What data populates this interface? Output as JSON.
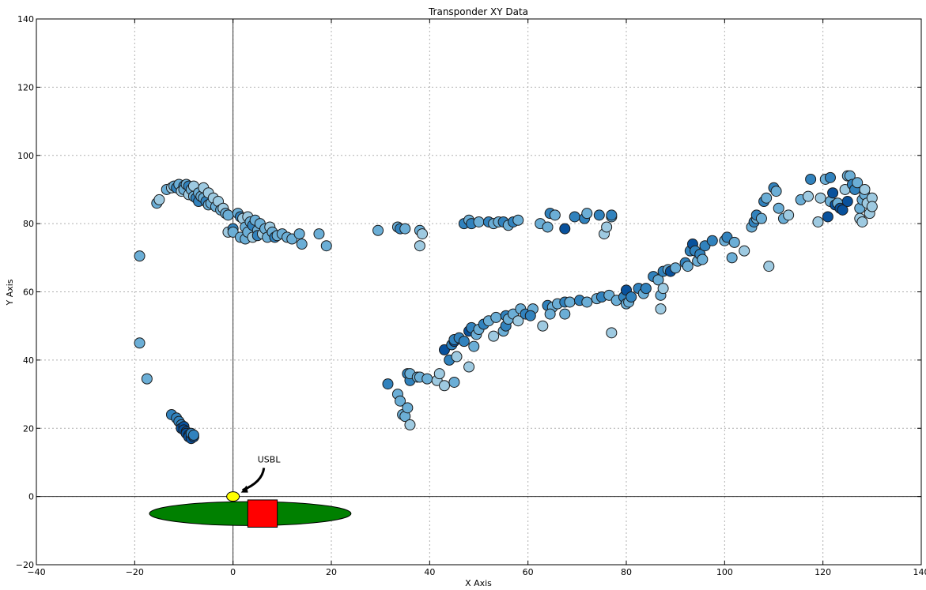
{
  "chart_data": {
    "type": "scatter",
    "title": "Transponder XY Data",
    "xlabel": "X Axis",
    "ylabel": "Y Axis",
    "xlim": [
      -40,
      140
    ],
    "ylim": [
      -20,
      140
    ],
    "xticks": [
      "−40",
      "−20",
      "0",
      "20",
      "40",
      "60",
      "80",
      "100",
      "120",
      "140"
    ],
    "yticks": [
      "−20",
      "0",
      "20",
      "40",
      "60",
      "80",
      "100",
      "120",
      "140"
    ],
    "grid": true,
    "colors": [
      "#c6dbef",
      "#9ecae1",
      "#6baed6",
      "#3182bd",
      "#08519c"
    ],
    "annotation": {
      "text": "USBL",
      "target": [
        0,
        0
      ],
      "text_pos": [
        5,
        10
      ]
    },
    "vessel": {
      "hull_center": [
        3.5,
        -5
      ],
      "hull_halfwidth": 20.5,
      "hull_halfheight": 3.5,
      "hull_color": "#008000",
      "deck_x": [
        3,
        9
      ],
      "deck_y": [
        -9,
        -1
      ],
      "deck_color": "#ff0000",
      "usbl_center": [
        0,
        0
      ],
      "usbl_color": "#ffff00"
    },
    "points": [
      [
        -19,
        70.5,
        2
      ],
      [
        -19,
        45,
        2
      ],
      [
        -17.5,
        34.5,
        2
      ],
      [
        -15.5,
        86,
        2
      ],
      [
        -15,
        87,
        1
      ],
      [
        -13.5,
        90,
        2
      ],
      [
        -12.5,
        90.5,
        1
      ],
      [
        -12,
        91,
        2
      ],
      [
        -11.5,
        90.5,
        3
      ],
      [
        -11,
        91.5,
        2
      ],
      [
        -10.5,
        89.5,
        1
      ],
      [
        -10,
        91,
        3
      ],
      [
        -10,
        90,
        2
      ],
      [
        -9.5,
        91.5,
        2
      ],
      [
        -9,
        88.5,
        1
      ],
      [
        -9,
        91,
        3
      ],
      [
        -8.5,
        90,
        2
      ],
      [
        -8,
        91,
        1
      ],
      [
        -8,
        88,
        2
      ],
      [
        -7.5,
        87.5,
        3
      ],
      [
        -7,
        89,
        2
      ],
      [
        -7,
        86.5,
        3
      ],
      [
        -6.5,
        88,
        2
      ],
      [
        -6,
        90.5,
        1
      ],
      [
        -6,
        87.5,
        2
      ],
      [
        -5.5,
        86.5,
        3
      ],
      [
        -5,
        89,
        1
      ],
      [
        -5,
        85.5,
        2
      ],
      [
        -4.5,
        86,
        2
      ],
      [
        -4,
        87.5,
        1
      ],
      [
        -3.5,
        85,
        2
      ],
      [
        -3,
        86.5,
        1
      ],
      [
        -2.5,
        84,
        2
      ],
      [
        -2,
        84.5,
        1
      ],
      [
        -1.5,
        83,
        2
      ],
      [
        -1,
        82.5,
        2
      ],
      [
        -1,
        77.5,
        1
      ],
      [
        0,
        78.5,
        3
      ],
      [
        0,
        77.5,
        2
      ],
      [
        1,
        83,
        2
      ],
      [
        1.5,
        82,
        3
      ],
      [
        1.5,
        76,
        2
      ],
      [
        2,
        81.5,
        1
      ],
      [
        2.5,
        79,
        2
      ],
      [
        2.5,
        75.5,
        2
      ],
      [
        3,
        82,
        1
      ],
      [
        3,
        77.5,
        2
      ],
      [
        3.5,
        80.5,
        2
      ],
      [
        4,
        79.5,
        3
      ],
      [
        4,
        76,
        1
      ],
      [
        4.5,
        81,
        2
      ],
      [
        5,
        78,
        2
      ],
      [
        5,
        76.5,
        3
      ],
      [
        5.5,
        80,
        2
      ],
      [
        6,
        77,
        1
      ],
      [
        6.5,
        78.5,
        2
      ],
      [
        7,
        76,
        2
      ],
      [
        7.5,
        79,
        1
      ],
      [
        8,
        77.5,
        2
      ],
      [
        8.5,
        76,
        3
      ],
      [
        9,
        76.5,
        2
      ],
      [
        10,
        77,
        2
      ],
      [
        11,
        76,
        2
      ],
      [
        12,
        75.5,
        2
      ],
      [
        13.5,
        77,
        2
      ],
      [
        14,
        74,
        2
      ],
      [
        17.5,
        77,
        2
      ],
      [
        19,
        73.5,
        2
      ],
      [
        -12.5,
        24,
        3
      ],
      [
        -11.5,
        23,
        3
      ],
      [
        -11,
        22,
        3
      ],
      [
        -10.5,
        21,
        3
      ],
      [
        -10.5,
        20,
        4
      ],
      [
        -10,
        20.5,
        4
      ],
      [
        -10,
        19.5,
        4
      ],
      [
        -9.5,
        19,
        4
      ],
      [
        -9.5,
        18.5,
        4
      ],
      [
        -9,
        18,
        4
      ],
      [
        -9,
        17.5,
        4
      ],
      [
        -8.5,
        17,
        4
      ],
      [
        -8.5,
        18.5,
        3
      ],
      [
        -8,
        17.5,
        4
      ],
      [
        -8,
        18,
        3
      ],
      [
        29.5,
        78,
        2
      ],
      [
        33.5,
        79,
        2
      ],
      [
        34,
        78.5,
        3
      ],
      [
        35,
        78.5,
        2
      ],
      [
        38,
        78,
        2
      ],
      [
        38.5,
        77,
        1
      ],
      [
        38,
        73.5,
        1
      ],
      [
        47,
        80,
        3
      ],
      [
        48,
        81,
        2
      ],
      [
        48.5,
        80,
        3
      ],
      [
        50,
        80.5,
        2
      ],
      [
        52,
        80.5,
        3
      ],
      [
        53,
        80,
        2
      ],
      [
        54,
        80.5,
        2
      ],
      [
        55,
        80.5,
        3
      ],
      [
        56,
        79.5,
        2
      ],
      [
        57,
        80.5,
        3
      ],
      [
        58,
        81,
        2
      ],
      [
        62.5,
        80,
        2
      ],
      [
        64,
        79,
        2
      ],
      [
        64.5,
        83,
        3
      ],
      [
        65.5,
        82.5,
        2
      ],
      [
        67.5,
        78.5,
        4
      ],
      [
        69.5,
        82,
        3
      ],
      [
        71.5,
        81.5,
        3
      ],
      [
        72,
        83,
        2
      ],
      [
        74.5,
        82.5,
        3
      ],
      [
        75.5,
        77,
        1
      ],
      [
        76,
        79,
        1
      ],
      [
        77,
        82,
        2
      ],
      [
        77,
        82.5,
        3
      ],
      [
        31.5,
        33,
        3
      ],
      [
        33.5,
        30,
        2
      ],
      [
        34,
        28,
        2
      ],
      [
        34.5,
        24,
        2
      ],
      [
        35,
        23.5,
        2
      ],
      [
        35.5,
        26,
        2
      ],
      [
        36,
        21,
        1
      ],
      [
        35.5,
        36,
        3
      ],
      [
        36,
        34,
        3
      ],
      [
        36,
        36,
        2
      ],
      [
        37.5,
        35,
        2
      ],
      [
        38,
        35,
        2
      ],
      [
        39.5,
        34.5,
        2
      ],
      [
        41.5,
        34,
        1
      ],
      [
        42,
        36,
        1
      ],
      [
        43,
        32.5,
        1
      ],
      [
        45,
        33.5,
        2
      ],
      [
        43,
        43,
        4
      ],
      [
        44,
        40,
        3
      ],
      [
        44.5,
        44.5,
        3
      ],
      [
        45,
        45.5,
        4
      ],
      [
        45,
        46,
        3
      ],
      [
        45.5,
        41,
        1
      ],
      [
        46,
        46.5,
        3
      ],
      [
        47,
        45.5,
        3
      ],
      [
        48,
        48.5,
        4
      ],
      [
        48.5,
        49.5,
        3
      ],
      [
        48,
        38,
        1
      ],
      [
        49,
        44,
        2
      ],
      [
        49.5,
        47.5,
        2
      ],
      [
        50,
        49,
        2
      ],
      [
        51,
        50.5,
        3
      ],
      [
        52,
        51.5,
        2
      ],
      [
        53,
        47,
        1
      ],
      [
        53.5,
        52.5,
        2
      ],
      [
        55,
        48.5,
        2
      ],
      [
        55.5,
        50,
        3
      ],
      [
        55.5,
        53,
        3
      ],
      [
        56,
        52,
        2
      ],
      [
        57,
        53.5,
        2
      ],
      [
        58,
        51.5,
        1
      ],
      [
        58.5,
        55,
        2
      ],
      [
        59.5,
        53.5,
        3
      ],
      [
        61,
        55,
        2
      ],
      [
        60.5,
        53,
        3
      ],
      [
        63,
        50,
        1
      ],
      [
        64,
        56,
        3
      ],
      [
        65,
        55.5,
        2
      ],
      [
        64.5,
        53.5,
        2
      ],
      [
        66,
        56.5,
        2
      ],
      [
        67.5,
        53.5,
        2
      ],
      [
        67.5,
        57,
        3
      ],
      [
        68.5,
        57,
        2
      ],
      [
        70.5,
        57.5,
        3
      ],
      [
        72,
        57,
        2
      ],
      [
        74,
        58,
        2
      ],
      [
        75,
        58.5,
        3
      ],
      [
        76.5,
        59,
        2
      ],
      [
        77,
        48,
        1
      ],
      [
        78,
        57.5,
        2
      ],
      [
        79.5,
        58.5,
        3
      ],
      [
        80,
        60.5,
        4
      ],
      [
        80,
        56.5,
        2
      ],
      [
        80.5,
        57,
        2
      ],
      [
        81,
        58.5,
        3
      ],
      [
        82.5,
        61,
        3
      ],
      [
        83.5,
        59.5,
        2
      ],
      [
        84,
        61,
        3
      ],
      [
        85.5,
        64.5,
        3
      ],
      [
        86.5,
        63.5,
        2
      ],
      [
        87,
        55,
        1
      ],
      [
        87,
        59,
        2
      ],
      [
        87.5,
        61,
        1
      ],
      [
        87.5,
        66,
        3
      ],
      [
        88.5,
        66.5,
        2
      ],
      [
        89,
        66,
        4
      ],
      [
        90,
        67,
        2
      ],
      [
        92,
        68.5,
        3
      ],
      [
        92.5,
        67.5,
        2
      ],
      [
        93,
        72,
        3
      ],
      [
        93.5,
        74,
        4
      ],
      [
        94,
        72,
        3
      ],
      [
        94.5,
        69,
        2
      ],
      [
        95,
        71,
        3
      ],
      [
        95.5,
        69.5,
        2
      ],
      [
        96,
        73.5,
        3
      ],
      [
        97.5,
        75,
        3
      ],
      [
        100,
        75,
        2
      ],
      [
        100.5,
        76,
        3
      ],
      [
        101.5,
        70,
        2
      ],
      [
        102,
        74.5,
        2
      ],
      [
        104,
        72,
        1
      ],
      [
        105.5,
        79,
        2
      ],
      [
        106,
        80.5,
        3
      ],
      [
        106.5,
        81.5,
        2
      ],
      [
        106.5,
        82.5,
        3
      ],
      [
        107.5,
        81.5,
        2
      ],
      [
        108,
        86.5,
        3
      ],
      [
        108.5,
        87.5,
        2
      ],
      [
        109,
        67.5,
        1
      ],
      [
        110,
        90.5,
        3
      ],
      [
        110.5,
        89.5,
        2
      ],
      [
        111,
        84.5,
        2
      ],
      [
        112,
        81.5,
        2
      ],
      [
        113,
        82.5,
        1
      ],
      [
        115.5,
        87,
        2
      ],
      [
        117,
        88,
        1
      ],
      [
        117.5,
        93,
        3
      ],
      [
        119,
        80.5,
        1
      ],
      [
        119.5,
        87.5,
        1
      ],
      [
        120.5,
        93,
        2
      ],
      [
        121,
        82,
        4
      ],
      [
        121.5,
        86.5,
        2
      ],
      [
        121.5,
        93.5,
        3
      ],
      [
        122,
        89,
        4
      ],
      [
        122.5,
        85.5,
        4
      ],
      [
        123,
        86,
        2
      ],
      [
        123.5,
        84.5,
        4
      ],
      [
        124,
        84,
        4
      ],
      [
        124.5,
        90,
        1
      ],
      [
        125,
        94,
        2
      ],
      [
        125,
        86.5,
        4
      ],
      [
        125.5,
        94,
        2
      ],
      [
        126,
        91.5,
        3
      ],
      [
        126.5,
        90,
        3
      ],
      [
        127,
        92,
        2
      ],
      [
        127.5,
        84.5,
        2
      ],
      [
        127.5,
        81.5,
        1
      ],
      [
        128,
        80.5,
        1
      ],
      [
        128,
        87,
        2
      ],
      [
        128.5,
        88.5,
        2
      ],
      [
        128.5,
        90,
        1
      ],
      [
        129,
        86,
        1
      ],
      [
        129.5,
        83,
        1
      ],
      [
        130,
        87.5,
        1
      ],
      [
        130,
        85,
        1
      ]
    ]
  }
}
